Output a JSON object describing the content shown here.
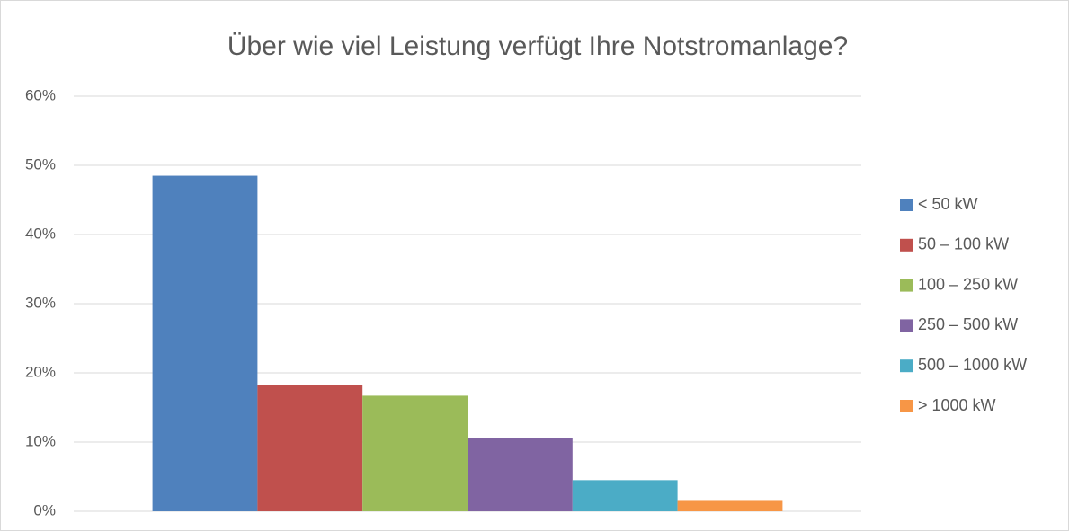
{
  "chart_data": {
    "type": "bar",
    "title": "Über wie viel Leistung verfügt Ihre Notstromanlage?",
    "categories": [
      null
    ],
    "series": [
      {
        "name": "< 50 kW",
        "color": "#4f81bd",
        "values": [
          48.5
        ]
      },
      {
        "name": "50 – 100 kW",
        "color": "#c0504d",
        "values": [
          18.2
        ]
      },
      {
        "name": "100 – 250 kW",
        "color": "#9bbb59",
        "values": [
          16.7
        ]
      },
      {
        "name": "250 – 500 kW",
        "color": "#8064a2",
        "values": [
          10.6
        ]
      },
      {
        "name": "500 – 1000 kW",
        "color": "#4bacc6",
        "values": [
          4.5
        ]
      },
      {
        "name": "> 1000 kW",
        "color": "#f79646",
        "values": [
          1.5
        ]
      }
    ],
    "ylim": [
      0,
      60
    ],
    "yticks": [
      {
        "value": 0,
        "label": "0%"
      },
      {
        "value": 10,
        "label": "10%"
      },
      {
        "value": 20,
        "label": "20%"
      },
      {
        "value": 30,
        "label": "30%"
      },
      {
        "value": 40,
        "label": "40%"
      },
      {
        "value": 50,
        "label": "50%"
      },
      {
        "value": 60,
        "label": "60%"
      }
    ],
    "grid": true,
    "legend": "right"
  }
}
